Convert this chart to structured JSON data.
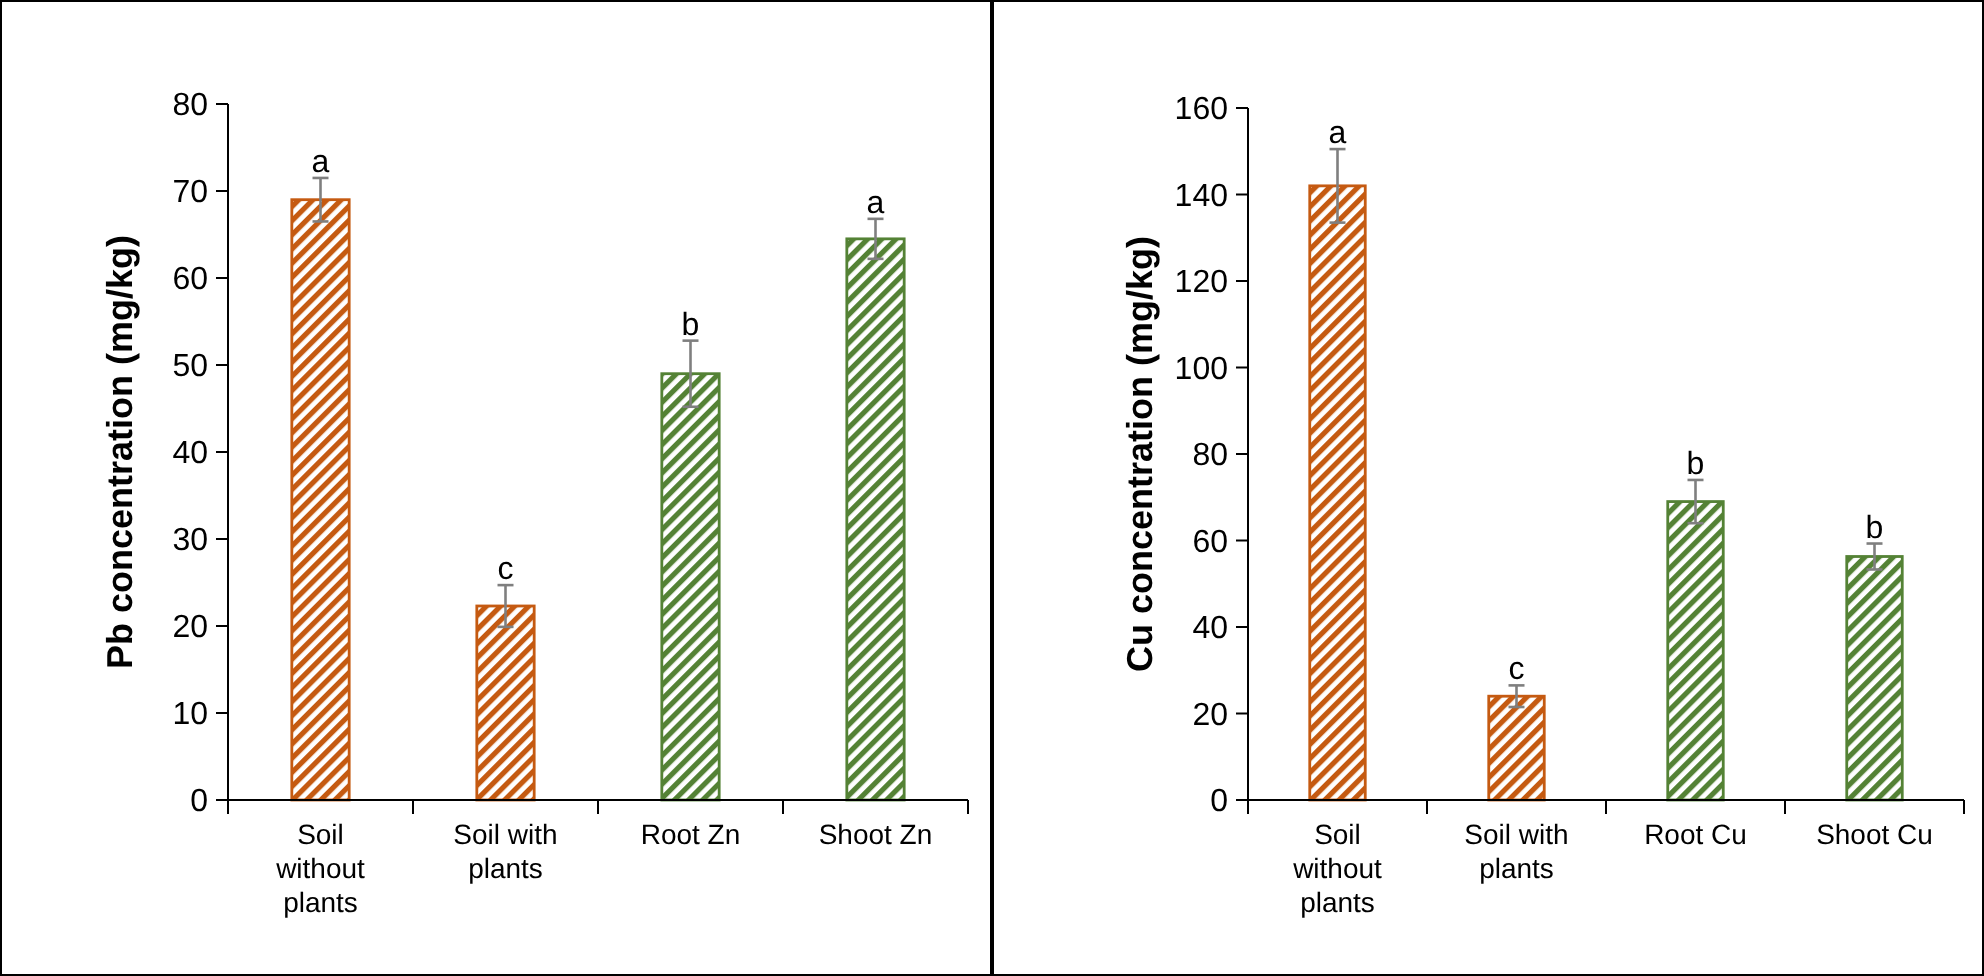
{
  "chart_data": [
    {
      "type": "bar",
      "ylabel": "Pb concentration (mg/kg)",
      "categories": [
        "Soil\nwithout\nplants",
        "Soil with\nplants",
        "Root Zn",
        "Shoot Zn"
      ],
      "values": [
        69,
        22.3,
        49,
        64.5
      ],
      "errors": [
        2.5,
        2.4,
        3.8,
        2.3
      ],
      "colors": [
        "#c55a11",
        "#c55a11",
        "#548235",
        "#548235"
      ],
      "ylim": [
        0,
        80
      ],
      "yticks": [
        0,
        10,
        20,
        30,
        40,
        50,
        60,
        70,
        80
      ],
      "annotations": [
        {
          "text": "a",
          "x": "Soil\nwithout\nplants",
          "y": 71.5
        },
        {
          "text": "c",
          "x": "Soil with\nplants",
          "y": 24.7
        },
        {
          "text": "b",
          "x": "Root Zn",
          "y": 52.8
        },
        {
          "text": "a",
          "x": "Shoot Zn",
          "y": 66.8
        }
      ]
    },
    {
      "type": "bar",
      "ylabel": "Cu concentration (mg/kg)",
      "categories": [
        "Soil\nwithout\nplants",
        "Soil with\nplants",
        "Root Cu",
        "Shoot Cu"
      ],
      "values": [
        142,
        24,
        69,
        56.3
      ],
      "errors": [
        8.5,
        2.5,
        5,
        3
      ],
      "colors": [
        "#c55a11",
        "#c55a11",
        "#548235",
        "#548235"
      ],
      "ylim": [
        0,
        160
      ],
      "yticks": [
        0,
        20,
        40,
        60,
        80,
        100,
        120,
        140,
        160
      ],
      "annotations": [
        {
          "text": "a",
          "x": "Soil\nwithout\nplants",
          "y": 150.5
        },
        {
          "text": "c",
          "x": "Soil with\nplants",
          "y": 26.5
        },
        {
          "text": "b",
          "x": "Root Cu",
          "y": 74
        },
        {
          "text": "b",
          "x": "Shoot Cu",
          "y": 59.3
        }
      ]
    }
  ]
}
